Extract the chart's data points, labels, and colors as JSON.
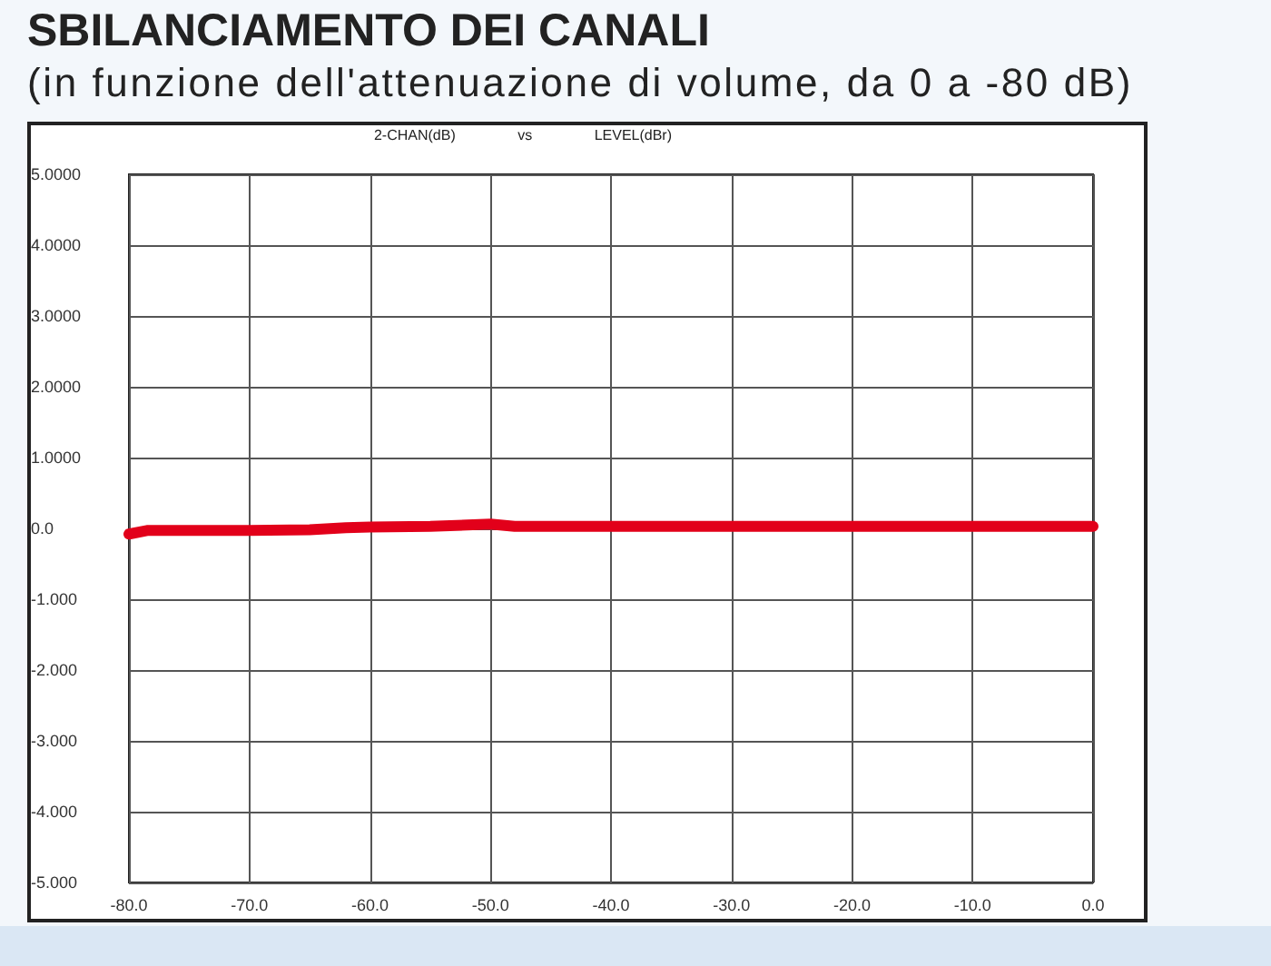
{
  "chart_data": {
    "type": "line",
    "title": "SBILANCIAMENTO DEI CANALI",
    "subtitle": "(in funzione dell'attenuazione di volume, da 0 a -80 dB)",
    "annotations": [
      "2-CHAN(dB) vs LEVEL(dBr)"
    ],
    "x": [
      -80,
      -78.5,
      -75,
      -70,
      -65,
      -62,
      -60,
      -55,
      -50,
      -48,
      -40,
      -30,
      -20,
      -10,
      0
    ],
    "series": [
      {
        "color": "#e2001a",
        "values": [
          -0.08,
          -0.03,
          -0.03,
          -0.03,
          -0.02,
          0.01,
          0.02,
          0.03,
          0.06,
          0.03,
          0.03,
          0.03,
          0.03,
          0.03,
          0.03
        ]
      }
    ],
    "xlim": [
      -80,
      0
    ],
    "xticks": [
      {
        "value": -80,
        "label": "-80.0"
      },
      {
        "value": -70,
        "label": "-70.0"
      },
      {
        "value": -60,
        "label": "-60.0"
      },
      {
        "value": -50,
        "label": "-50.0"
      },
      {
        "value": -40,
        "label": "-40.0"
      },
      {
        "value": -30,
        "label": "-30.0"
      },
      {
        "value": -20,
        "label": "-20.0"
      },
      {
        "value": -10,
        "label": "-10.0"
      },
      {
        "value": 0,
        "label": "0.0"
      }
    ],
    "ylim": [
      -5,
      5
    ],
    "yticks": [
      {
        "value": -5,
        "label": "-5.000"
      },
      {
        "value": -4,
        "label": "-4.000"
      },
      {
        "value": -3,
        "label": "-3.000"
      },
      {
        "value": -2,
        "label": "-2.000"
      },
      {
        "value": -1,
        "label": "-1.000"
      },
      {
        "value": 0,
        "label": "0.0"
      },
      {
        "value": 1,
        "label": "1.0000"
      },
      {
        "value": 2,
        "label": "2.0000"
      },
      {
        "value": 3,
        "label": "3.0000"
      },
      {
        "value": 4,
        "label": "4.0000"
      },
      {
        "value": 5,
        "label": "5.0000"
      }
    ],
    "grid": true,
    "marker": "none",
    "line_style": "solid"
  }
}
